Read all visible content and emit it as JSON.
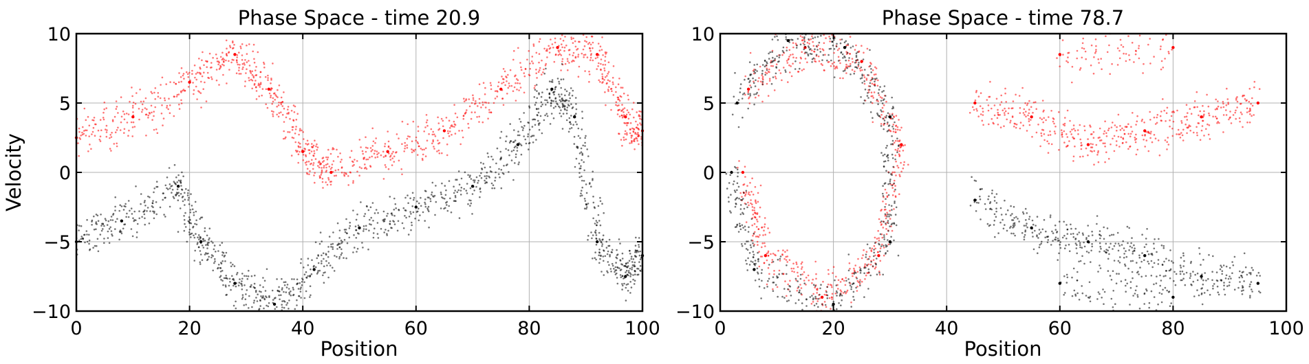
{
  "chart_data": [
    {
      "type": "scatter",
      "title": "Phase Space - time 20.9",
      "xlabel": "Position",
      "ylabel": "Velocity",
      "xlim": [
        0,
        100
      ],
      "ylim": [
        -10,
        10
      ],
      "xticks": [
        0,
        20,
        40,
        60,
        80,
        100
      ],
      "yticks": [
        -10,
        -5,
        0,
        5,
        10
      ],
      "xtick_labels": [
        "0",
        "20",
        "40",
        "60",
        "80",
        "100"
      ],
      "ytick_labels": [
        "−10",
        "−5",
        "0",
        "5",
        "10"
      ],
      "grid": true,
      "series": [
        {
          "color": "#ff0000",
          "pattern": "wave",
          "points": [
            [
              0,
              2.5
            ],
            [
              10,
              4
            ],
            [
              20,
              6.5
            ],
            [
              28,
              8.5
            ],
            [
              34,
              6
            ],
            [
              40,
              1.5
            ],
            [
              45,
              0
            ],
            [
              55,
              1.5
            ],
            [
              65,
              3
            ],
            [
              75,
              6
            ],
            [
              85,
              9
            ],
            [
              92,
              8.5
            ],
            [
              97,
              4
            ],
            [
              100,
              3
            ]
          ]
        },
        {
          "color": "#000000",
          "pattern": "wave",
          "points": [
            [
              0,
              -5
            ],
            [
              8,
              -3.5
            ],
            [
              18,
              -1
            ],
            [
              22,
              -5
            ],
            [
              28,
              -8
            ],
            [
              35,
              -9.5
            ],
            [
              42,
              -7
            ],
            [
              50,
              -4
            ],
            [
              60,
              -2.5
            ],
            [
              70,
              -1
            ],
            [
              78,
              2
            ],
            [
              84,
              6
            ],
            [
              88,
              4
            ],
            [
              92,
              -5
            ],
            [
              97,
              -7.5
            ],
            [
              100,
              -6
            ]
          ]
        }
      ]
    },
    {
      "type": "scatter",
      "title": "Phase Space - time 78.7",
      "xlabel": "Position",
      "ylabel": "",
      "xlim": [
        0,
        100
      ],
      "ylim": [
        -10,
        10
      ],
      "xticks": [
        0,
        20,
        40,
        60,
        80,
        100
      ],
      "yticks": [
        -10,
        -5,
        0,
        5,
        10
      ],
      "xtick_labels": [
        "0",
        "20",
        "40",
        "60",
        "80",
        "100"
      ],
      "ytick_labels": [
        "−10",
        "−5",
        "0",
        "5",
        "10"
      ],
      "grid": true,
      "series": [
        {
          "color": "#ff0000",
          "pattern": "vortex",
          "points": [
            [
              5,
              6
            ],
            [
              15,
              9
            ],
            [
              25,
              8
            ],
            [
              32,
              2
            ],
            [
              28,
              -6
            ],
            [
              18,
              -9
            ],
            [
              8,
              -6
            ],
            [
              4,
              0
            ],
            [
              45,
              5
            ],
            [
              55,
              4
            ],
            [
              65,
              2
            ],
            [
              75,
              3
            ],
            [
              85,
              4
            ],
            [
              95,
              5
            ],
            [
              60,
              8.5
            ],
            [
              80,
              9
            ]
          ]
        },
        {
          "color": "#000000",
          "pattern": "vortex",
          "points": [
            [
              3,
              5
            ],
            [
              12,
              9.5
            ],
            [
              22,
              9
            ],
            [
              30,
              4
            ],
            [
              30,
              -5
            ],
            [
              20,
              -9.5
            ],
            [
              6,
              -7
            ],
            [
              2,
              0
            ],
            [
              45,
              -2
            ],
            [
              55,
              -4
            ],
            [
              65,
              -5
            ],
            [
              75,
              -6
            ],
            [
              85,
              -7.5
            ],
            [
              95,
              -8
            ],
            [
              60,
              -8
            ],
            [
              80,
              -9
            ]
          ]
        }
      ]
    }
  ]
}
